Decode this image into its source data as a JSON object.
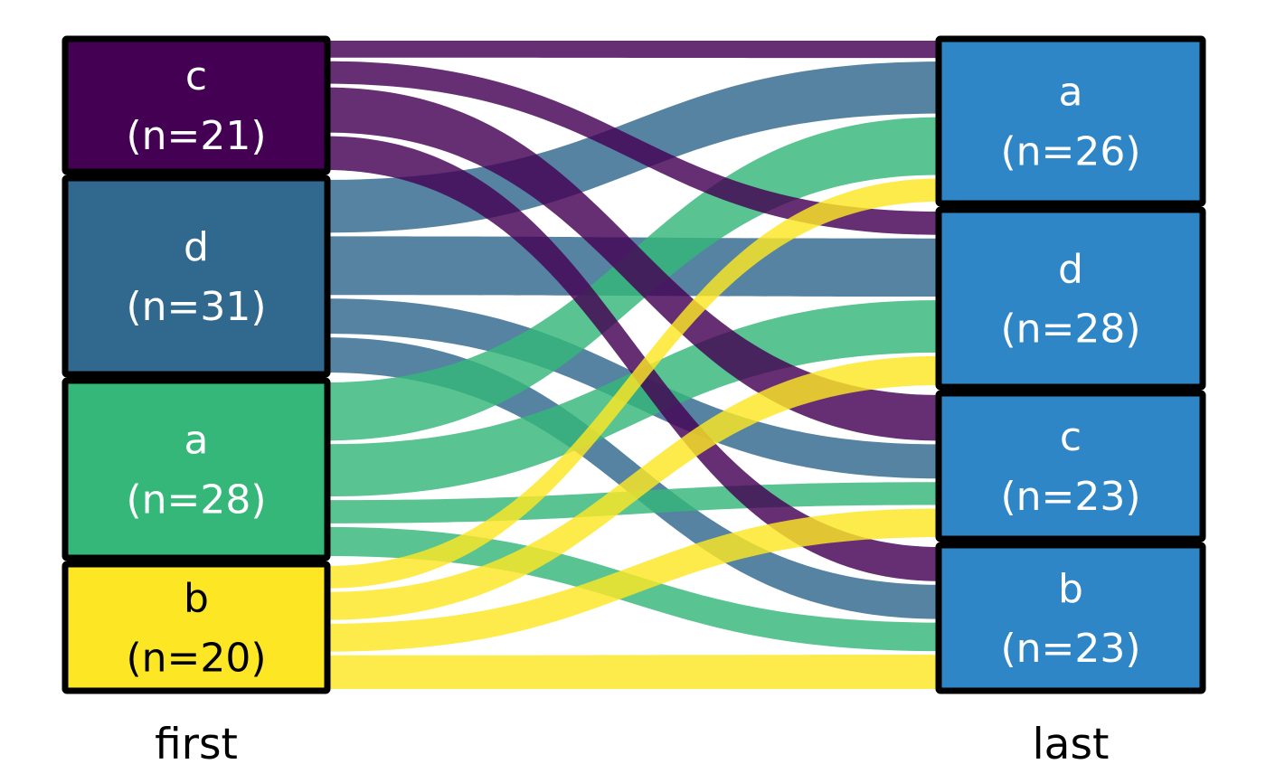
{
  "chart_data": {
    "type": "sankey",
    "title": "",
    "columns": [
      "first",
      "last"
    ],
    "left_axis_label": "first",
    "right_axis_label": "last",
    "left_nodes": [
      {
        "id": "c",
        "label": "c",
        "n": 21,
        "sub": "(n=21)",
        "color": "#440154",
        "text_color": "#ffffff"
      },
      {
        "id": "d",
        "label": "d",
        "n": 31,
        "sub": "(n=31)",
        "color": "#31688e",
        "text_color": "#ffffff"
      },
      {
        "id": "a",
        "label": "a",
        "n": 28,
        "sub": "(n=28)",
        "color": "#35b779",
        "text_color": "#ffffff"
      },
      {
        "id": "b",
        "label": "b",
        "n": 20,
        "sub": "(n=20)",
        "color": "#fde725",
        "text_color": "#000000"
      }
    ],
    "right_nodes": [
      {
        "id": "a",
        "label": "a",
        "n": 26,
        "sub": "(n=26)",
        "color": "#2e86c7",
        "text_color": "#ffffff"
      },
      {
        "id": "d",
        "label": "d",
        "n": 28,
        "sub": "(n=28)",
        "color": "#2e86c7",
        "text_color": "#ffffff"
      },
      {
        "id": "c",
        "label": "c",
        "n": 23,
        "sub": "(n=23)",
        "color": "#2e86c7",
        "text_color": "#ffffff"
      },
      {
        "id": "b",
        "label": "b",
        "n": 23,
        "sub": "(n=23)",
        "color": "#2e86c7",
        "text_color": "#ffffff"
      }
    ],
    "flows": [
      {
        "source": "c",
        "target": "a",
        "value": 3
      },
      {
        "source": "c",
        "target": "d",
        "value": 4
      },
      {
        "source": "c",
        "target": "c",
        "value": 8
      },
      {
        "source": "c",
        "target": "b",
        "value": 6
      },
      {
        "source": "d",
        "target": "a",
        "value": 9
      },
      {
        "source": "d",
        "target": "d",
        "value": 10
      },
      {
        "source": "d",
        "target": "c",
        "value": 6
      },
      {
        "source": "d",
        "target": "b",
        "value": 6
      },
      {
        "source": "a",
        "target": "a",
        "value": 10
      },
      {
        "source": "a",
        "target": "d",
        "value": 9
      },
      {
        "source": "a",
        "target": "c",
        "value": 4
      },
      {
        "source": "a",
        "target": "b",
        "value": 5
      },
      {
        "source": "b",
        "target": "a",
        "value": 4
      },
      {
        "source": "b",
        "target": "d",
        "value": 5
      },
      {
        "source": "b",
        "target": "c",
        "value": 5
      },
      {
        "source": "b",
        "target": "b",
        "value": 6
      }
    ],
    "flow_draw_order": [
      "d",
      "a",
      "c",
      "b"
    ],
    "flow_opacity": 0.82,
    "node_border_color": "#000000",
    "background": "#ffffff"
  }
}
